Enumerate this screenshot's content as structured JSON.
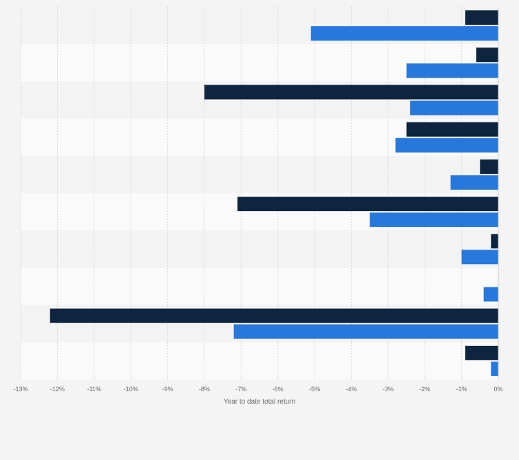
{
  "chart_data": {
    "type": "bar",
    "orientation": "horizontal",
    "title": "",
    "xlabel": "Year to date total return",
    "ylabel": "",
    "xlim": [
      -13,
      0
    ],
    "x_ticks": [
      -13,
      -12,
      -11,
      -10,
      -9,
      -8,
      -7,
      -6,
      -5,
      -4,
      -3,
      -2,
      -1,
      0
    ],
    "x_tick_labels": [
      "-13%",
      "-12%",
      "-11%",
      "-10%",
      "-9%",
      "-8%",
      "-7%",
      "-6%",
      "-5%",
      "-4%",
      "-3%",
      "-2%",
      "-1%",
      "0%"
    ],
    "grid": true,
    "legend": "none",
    "categories": [
      "",
      "",
      "",
      "",
      "",
      "",
      "",
      "",
      "",
      ""
    ],
    "series": [
      {
        "color": "#0d253f",
        "values": [
          -0.9,
          -0.6,
          -8.0,
          -2.5,
          -0.5,
          -7.1,
          -0.2,
          0,
          -12.2,
          -0.9
        ]
      },
      {
        "color": "#2878dc",
        "values": [
          -5.1,
          -2.5,
          -2.4,
          -2.8,
          -1.3,
          -3.5,
          -1.0,
          -0.4,
          -7.2,
          -0.2
        ]
      }
    ]
  }
}
